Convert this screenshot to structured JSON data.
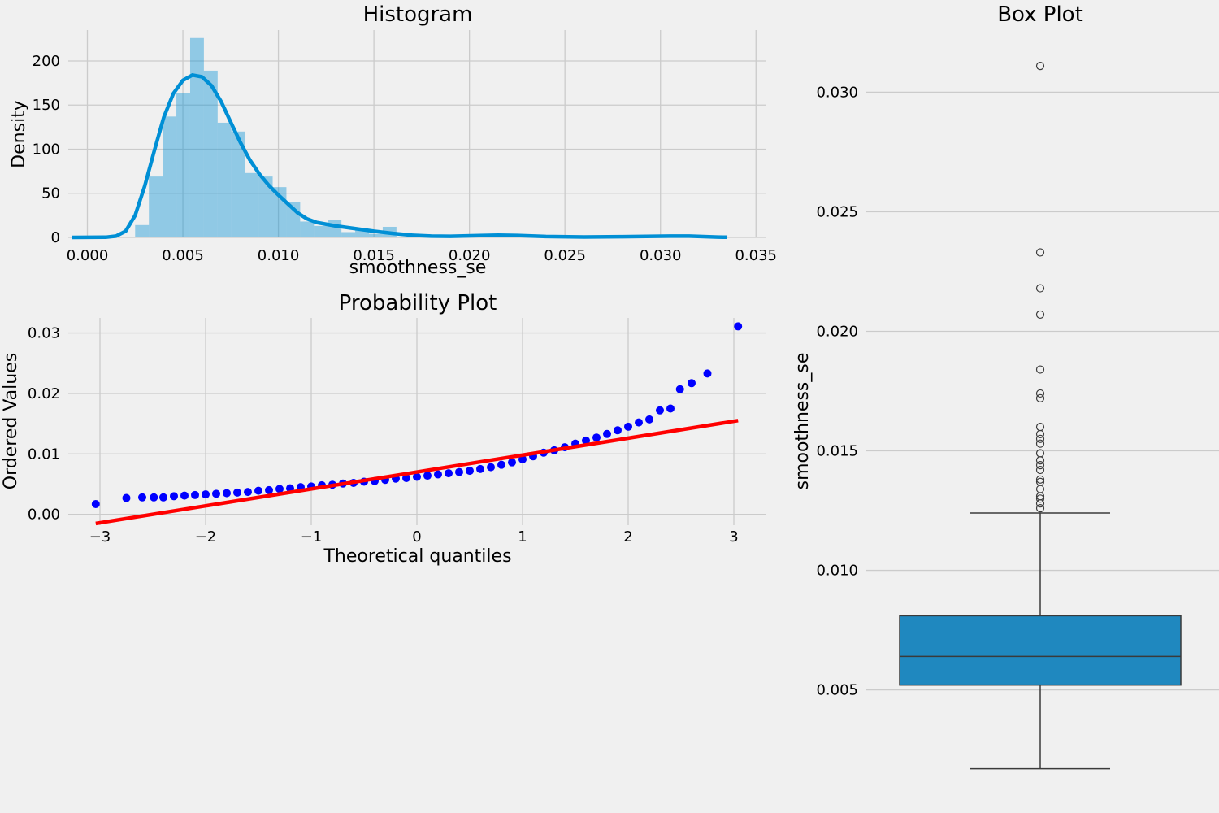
{
  "colors": {
    "background": "#f0f0f0",
    "grid": "#cbcbcb",
    "hist_bar": "#008fd5",
    "hist_bar_alpha": 0.4,
    "kde_line": "#008fd5",
    "qq_points": "#0000ff",
    "qq_fit_line": "#ff0000",
    "box_fill": "#1f88bf",
    "box_edge": "#3a3a3a"
  },
  "chart_data": [
    {
      "type": "bar",
      "title": "Histogram",
      "xlabel": "smoothness_se",
      "ylabel": "Density",
      "xlim": [
        -0.001,
        0.0355
      ],
      "ylim": [
        0,
        235
      ],
      "xticks": [
        0.0,
        0.005,
        0.01,
        0.015,
        0.02,
        0.025,
        0.03,
        0.035
      ],
      "xtick_labels": [
        "0.000",
        "0.005",
        "0.010",
        "0.015",
        "0.020",
        "0.025",
        "0.030",
        "0.035"
      ],
      "yticks": [
        0,
        50,
        100,
        150,
        200
      ],
      "ytick_labels": [
        "0",
        "50",
        "100",
        "150",
        "200"
      ],
      "bin_width": 0.00072,
      "bins": [
        {
          "x": 0.0025,
          "h": 14
        },
        {
          "x": 0.00322,
          "h": 69
        },
        {
          "x": 0.00394,
          "h": 137
        },
        {
          "x": 0.00466,
          "h": 164
        },
        {
          "x": 0.00538,
          "h": 226
        },
        {
          "x": 0.0061,
          "h": 189
        },
        {
          "x": 0.00682,
          "h": 130
        },
        {
          "x": 0.00754,
          "h": 120
        },
        {
          "x": 0.00826,
          "h": 73
        },
        {
          "x": 0.00898,
          "h": 69
        },
        {
          "x": 0.0097,
          "h": 57
        },
        {
          "x": 0.01042,
          "h": 40
        },
        {
          "x": 0.01114,
          "h": 18
        },
        {
          "x": 0.01186,
          "h": 13
        },
        {
          "x": 0.01258,
          "h": 20
        },
        {
          "x": 0.0133,
          "h": 6
        },
        {
          "x": 0.01402,
          "h": 8
        },
        {
          "x": 0.01474,
          "h": 4
        },
        {
          "x": 0.01546,
          "h": 12
        },
        {
          "x": 0.01618,
          "h": 0
        },
        {
          "x": 0.0169,
          "h": 2
        },
        {
          "x": 0.0205,
          "h": 1
        },
        {
          "x": 0.0212,
          "h": 1
        },
        {
          "x": 0.0232,
          "h": 1
        },
        {
          "x": 0.0311,
          "h": 1
        }
      ],
      "kde": [
        [
          -0.0008,
          0
        ],
        [
          0.001,
          0.3
        ],
        [
          0.0015,
          1.5
        ],
        [
          0.002,
          7
        ],
        [
          0.0025,
          25
        ],
        [
          0.003,
          58
        ],
        [
          0.0035,
          98
        ],
        [
          0.004,
          136
        ],
        [
          0.0045,
          163
        ],
        [
          0.005,
          178
        ],
        [
          0.0055,
          184
        ],
        [
          0.006,
          182
        ],
        [
          0.0065,
          172
        ],
        [
          0.007,
          154
        ],
        [
          0.0075,
          131
        ],
        [
          0.008,
          108
        ],
        [
          0.0085,
          88
        ],
        [
          0.009,
          72
        ],
        [
          0.0095,
          59
        ],
        [
          0.01,
          48
        ],
        [
          0.0105,
          38
        ],
        [
          0.011,
          28
        ],
        [
          0.0115,
          21
        ],
        [
          0.012,
          17
        ],
        [
          0.013,
          13
        ],
        [
          0.014,
          10
        ],
        [
          0.015,
          7
        ],
        [
          0.016,
          4.5
        ],
        [
          0.017,
          2.5
        ],
        [
          0.018,
          1.5
        ],
        [
          0.019,
          1.3
        ],
        [
          0.0205,
          2
        ],
        [
          0.0215,
          2.5
        ],
        [
          0.0225,
          2.2
        ],
        [
          0.024,
          1
        ],
        [
          0.026,
          0.5
        ],
        [
          0.028,
          0.8
        ],
        [
          0.0305,
          1.5
        ],
        [
          0.0315,
          1.5
        ],
        [
          0.033,
          0.4
        ],
        [
          0.0335,
          0.2
        ]
      ]
    },
    {
      "type": "scatter",
      "title": "Probability Plot",
      "xlabel": "Theoretical quantiles",
      "ylabel": "Ordered Values",
      "xlim": [
        -3.3,
        3.3
      ],
      "ylim": [
        -0.0018,
        0.0325
      ],
      "xticks": [
        -3,
        -2,
        -1,
        0,
        1,
        2,
        3
      ],
      "xtick_labels": [
        "−3",
        "−2",
        "−1",
        "0",
        "1",
        "2",
        "3"
      ],
      "yticks": [
        0.0,
        0.01,
        0.02,
        0.03
      ],
      "ytick_labels": [
        "0.00",
        "0.01",
        "0.02",
        "0.03"
      ],
      "fit_line": {
        "slope": 0.0028,
        "intercept": 0.007,
        "x_range": [
          -3.04,
          3.04
        ]
      },
      "points": [
        [
          -3.04,
          0.0017
        ],
        [
          -2.75,
          0.0027
        ],
        [
          -2.6,
          0.0028
        ],
        [
          -2.49,
          0.0028
        ],
        [
          -2.4,
          0.0028
        ],
        [
          -2.3,
          0.003
        ],
        [
          -2.2,
          0.0031
        ],
        [
          -2.1,
          0.0032
        ],
        [
          -2.0,
          0.0033
        ],
        [
          -1.9,
          0.0034
        ],
        [
          -1.8,
          0.0035
        ],
        [
          -1.7,
          0.0036
        ],
        [
          -1.6,
          0.0037
        ],
        [
          -1.5,
          0.0039
        ],
        [
          -1.4,
          0.004
        ],
        [
          -1.3,
          0.0042
        ],
        [
          -1.2,
          0.0043
        ],
        [
          -1.1,
          0.0045
        ],
        [
          -1.0,
          0.0046
        ],
        [
          -0.9,
          0.0048
        ],
        [
          -0.8,
          0.0049
        ],
        [
          -0.7,
          0.0051
        ],
        [
          -0.6,
          0.0052
        ],
        [
          -0.5,
          0.0054
        ],
        [
          -0.4,
          0.0055
        ],
        [
          -0.3,
          0.0057
        ],
        [
          -0.2,
          0.0059
        ],
        [
          -0.1,
          0.006
        ],
        [
          0.0,
          0.0062
        ],
        [
          0.1,
          0.0064
        ],
        [
          0.2,
          0.0066
        ],
        [
          0.3,
          0.0068
        ],
        [
          0.4,
          0.007
        ],
        [
          0.5,
          0.0072
        ],
        [
          0.6,
          0.0075
        ],
        [
          0.7,
          0.0078
        ],
        [
          0.8,
          0.0082
        ],
        [
          0.9,
          0.0086
        ],
        [
          1.0,
          0.0091
        ],
        [
          1.1,
          0.0096
        ],
        [
          1.2,
          0.0102
        ],
        [
          1.3,
          0.0106
        ],
        [
          1.4,
          0.0111
        ],
        [
          1.5,
          0.0117
        ],
        [
          1.6,
          0.0122
        ],
        [
          1.7,
          0.0127
        ],
        [
          1.8,
          0.0133
        ],
        [
          1.9,
          0.0139
        ],
        [
          2.0,
          0.0145
        ],
        [
          2.1,
          0.0152
        ],
        [
          2.2,
          0.0157
        ],
        [
          2.3,
          0.0172
        ],
        [
          2.4,
          0.0175
        ],
        [
          2.49,
          0.0207
        ],
        [
          2.6,
          0.0217
        ],
        [
          2.75,
          0.0233
        ],
        [
          3.04,
          0.0311
        ]
      ]
    },
    {
      "type": "box",
      "title": "Box Plot",
      "ylabel": "smoothness_se",
      "ylim": [
        0.00053,
        0.0326
      ],
      "yticks": [
        0.005,
        0.01,
        0.015,
        0.02,
        0.025,
        0.03
      ],
      "ytick_labels": [
        "0.005",
        "0.010",
        "0.015",
        "0.020",
        "0.025",
        "0.030"
      ],
      "whisker_low": 0.0017,
      "q1": 0.0052,
      "median": 0.0064,
      "q3": 0.0081,
      "whisker_high": 0.0124,
      "outliers": [
        0.0126,
        0.0128,
        0.013,
        0.0131,
        0.0134,
        0.0137,
        0.0138,
        0.0142,
        0.0144,
        0.0146,
        0.0149,
        0.0153,
        0.0155,
        0.0157,
        0.016,
        0.0172,
        0.0174,
        0.0184,
        0.0207,
        0.0218,
        0.0233,
        0.0311
      ]
    }
  ]
}
